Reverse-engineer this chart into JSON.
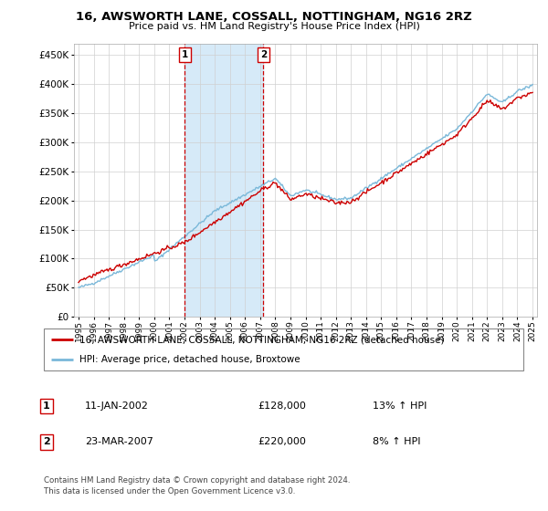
{
  "title": "16, AWSWORTH LANE, COSSALL, NOTTINGHAM, NG16 2RZ",
  "subtitle": "Price paid vs. HM Land Registry's House Price Index (HPI)",
  "ylim": [
    0,
    470000
  ],
  "yticks": [
    0,
    50000,
    100000,
    150000,
    200000,
    250000,
    300000,
    350000,
    400000,
    450000
  ],
  "ytick_labels": [
    "£0",
    "£50K",
    "£100K",
    "£150K",
    "£200K",
    "£250K",
    "£300K",
    "£350K",
    "£400K",
    "£450K"
  ],
  "hpi_color": "#7ab8d9",
  "price_color": "#cc0000",
  "sale1_year": 2002.03,
  "sale2_year": 2007.22,
  "shade_color": "#d6eaf8",
  "legend_line1": "16, AWSWORTH LANE, COSSALL, NOTTINGHAM, NG16 2RZ (detached house)",
  "legend_line2": "HPI: Average price, detached house, Broxtowe",
  "table_row1": [
    "1",
    "11-JAN-2002",
    "£128,000",
    "13% ↑ HPI"
  ],
  "table_row2": [
    "2",
    "23-MAR-2007",
    "£220,000",
    "8% ↑ HPI"
  ],
  "footnote": "Contains HM Land Registry data © Crown copyright and database right 2024.\nThis data is licensed under the Open Government Licence v3.0."
}
